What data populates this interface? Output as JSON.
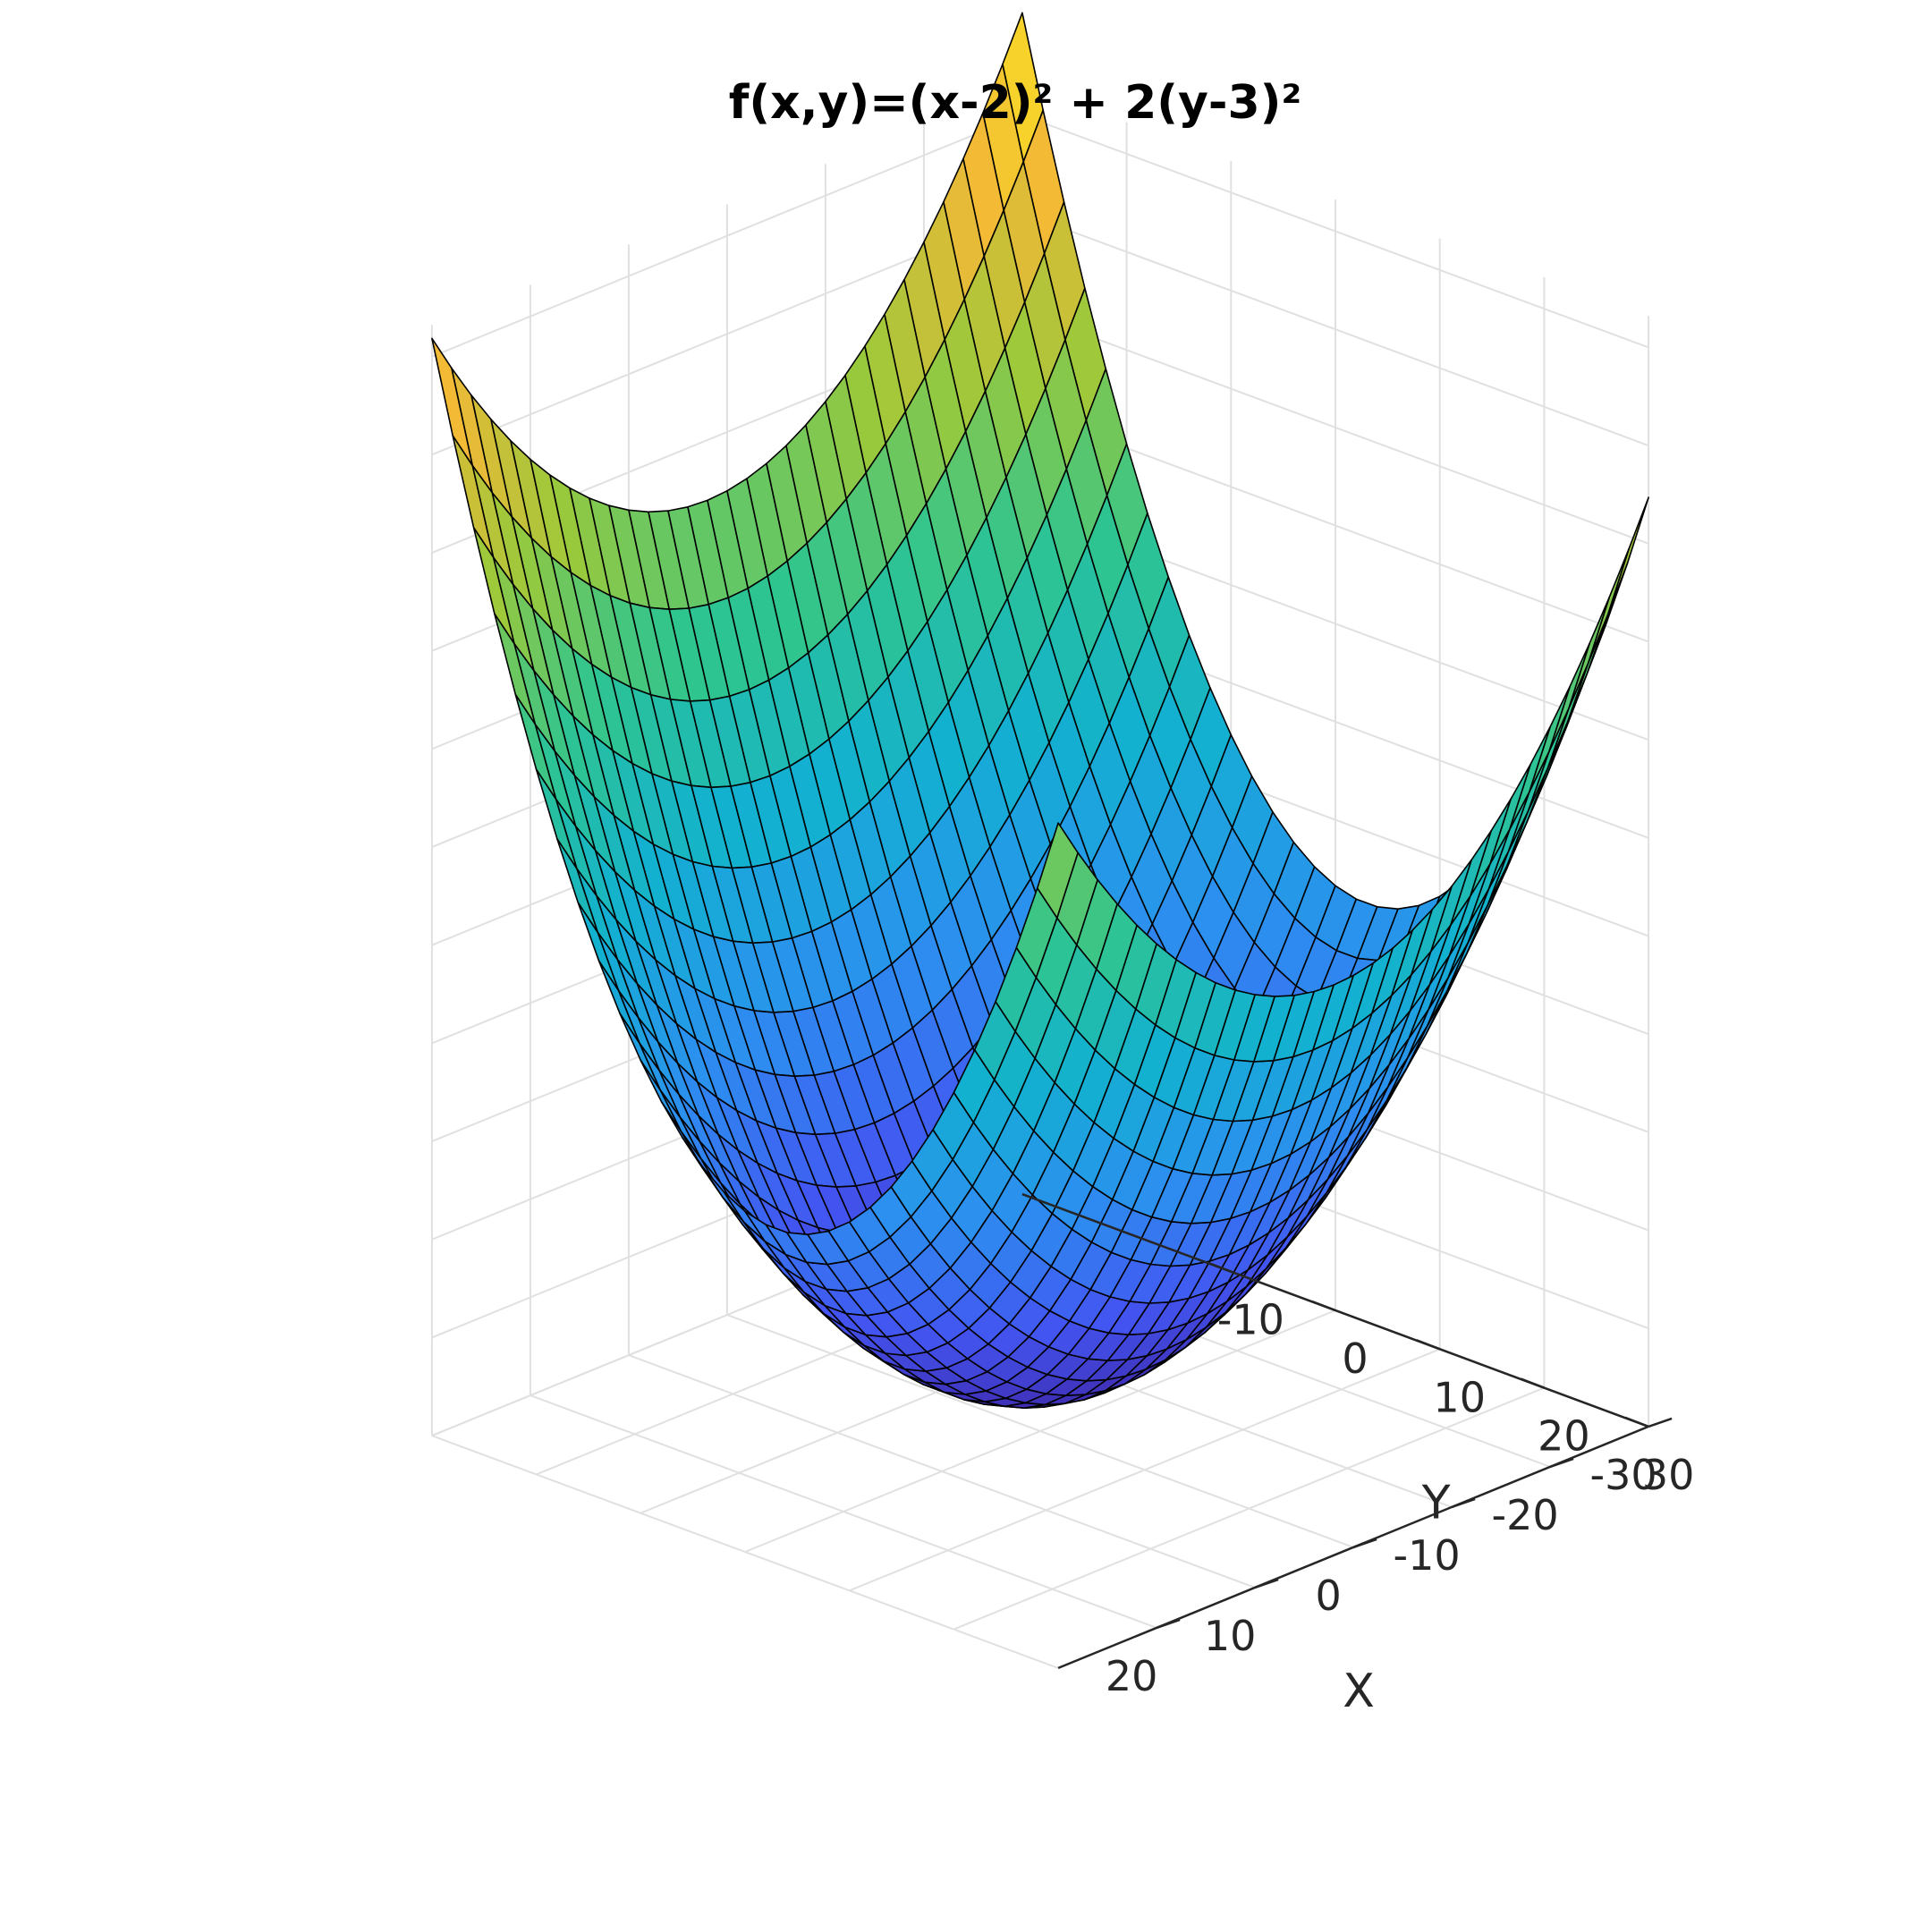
{
  "chart_data": {
    "type": "surface",
    "title": "f(x,y)=(x-2)² + 2(y-3)²",
    "function": {
      "x0": 2,
      "y0": 3,
      "cx": 1,
      "cy": 2
    },
    "xlabel": "X",
    "ylabel": "Y",
    "zlabel": "",
    "xlim": [
      -30,
      30
    ],
    "ylim": [
      -30,
      30
    ],
    "x_ticks": [
      "20",
      "10",
      "0",
      "-10",
      "-20",
      "-30"
    ],
    "y_ticks": [
      "-10",
      "0",
      "10",
      "20",
      "30"
    ],
    "grid_resolution": 31,
    "grid": true,
    "colormap": "parula",
    "colormap_stops": [
      "#3e26a8",
      "#4355f1",
      "#2c8ff0",
      "#12b1d0",
      "#2fc58f",
      "#9bc93b",
      "#f2b836",
      "#f9e523"
    ],
    "edge_color": "#000000",
    "grid_color": "#e0e0e0",
    "axis_color": "#262626"
  }
}
